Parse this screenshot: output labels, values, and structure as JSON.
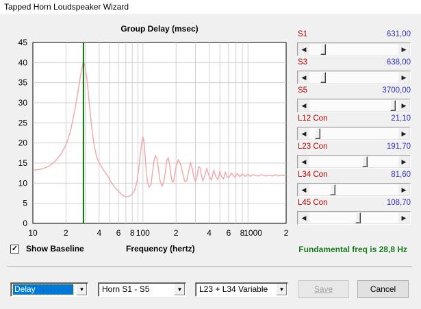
{
  "window": {
    "title": "Tapped Horn Loudspeaker Wizard"
  },
  "chart_data": {
    "type": "line",
    "title": "Group Delay (msec)",
    "xlabel": "Frequency (hertz)",
    "ylabel": "",
    "xscale": "log",
    "xlim": [
      10,
      2000
    ],
    "ylim": [
      0,
      45
    ],
    "y_ticks": [
      0,
      5,
      10,
      15,
      20,
      25,
      30,
      35,
      40,
      45
    ],
    "x_ticks": [
      10,
      20,
      40,
      60,
      80,
      100,
      200,
      400,
      600,
      800,
      1000,
      2000
    ],
    "x_tick_labels": [
      "10",
      "2",
      "4",
      "6",
      "8",
      "100",
      "2",
      "4",
      "6",
      "8",
      "1000",
      "2"
    ],
    "grid": true,
    "marker_freq": 28.8,
    "colors": {
      "curve": "#f0aaaa",
      "marker": "#0a6e0a",
      "grid": "#cfcfcf"
    },
    "series": [
      {
        "x": [
          10,
          12,
          14,
          16,
          18,
          20,
          22,
          24,
          26,
          27,
          28,
          28.8,
          29.5,
          30,
          31,
          32,
          34,
          36,
          38,
          40,
          44,
          48,
          52,
          56,
          60,
          64,
          68,
          72,
          76,
          80,
          84,
          88,
          92,
          95,
          98,
          100,
          102,
          104,
          107,
          110,
          114,
          118,
          122,
          126,
          130,
          134,
          138,
          142,
          146,
          150,
          155,
          160,
          165,
          170,
          175,
          180,
          185,
          190,
          195,
          200,
          210,
          220,
          230,
          240,
          250,
          260,
          270,
          280,
          290,
          300,
          310,
          320,
          330,
          340,
          350,
          360,
          380,
          400,
          420,
          440,
          460,
          480,
          500,
          520,
          540,
          560,
          580,
          600,
          640,
          680,
          720,
          760,
          800,
          850,
          900,
          950,
          1000,
          1100,
          1200,
          1300,
          1400,
          1500,
          1600,
          1700,
          1800,
          1900,
          2000
        ],
        "y": [
          13.2,
          13.5,
          14.2,
          15.5,
          17.2,
          19.5,
          23,
          28,
          33.5,
          36.5,
          38.8,
          40.2,
          39.6,
          38.5,
          36,
          32,
          24.5,
          19.5,
          16.5,
          15,
          13.2,
          11.8,
          10,
          8.8,
          8,
          7.2,
          6.7,
          6.6,
          6.8,
          7.3,
          8.2,
          10.2,
          14,
          17.5,
          20.5,
          21.4,
          20.6,
          18,
          13.5,
          10.2,
          9,
          9.6,
          12.5,
          15.5,
          16.8,
          16.2,
          13.8,
          11,
          9.8,
          9.3,
          10.5,
          12.8,
          15.8,
          16.3,
          14.5,
          11.8,
          10.3,
          10.4,
          12.2,
          14.2,
          15.8,
          14.6,
          12.3,
          10.4,
          10.6,
          12.8,
          15.1,
          13.8,
          11.5,
          10.4,
          11.6,
          14.1,
          13.9,
          11.9,
          10.6,
          11.4,
          13.6,
          11.7,
          10.8,
          13.2,
          11.6,
          10.9,
          12.9,
          11.5,
          11.1,
          12.7,
          11.6,
          11.3,
          12.5,
          11.5,
          12.4,
          11.6,
          12.3,
          11.7,
          12.2,
          11.7,
          12.1,
          11.8,
          12.1,
          11.8,
          12,
          11.8,
          12.1,
          11.8,
          12,
          11.9,
          11.9
        ]
      }
    ]
  },
  "sliders": [
    {
      "label": "S1",
      "value": "631,00",
      "position": 0.12
    },
    {
      "label": "S3",
      "value": "638,00",
      "position": 0.12
    },
    {
      "label": "S5",
      "value": "3700,00",
      "position": 0.96
    },
    {
      "label": "L12  Con",
      "value": "21,10",
      "position": 0.06
    },
    {
      "label": "L23  Con",
      "value": "191,70",
      "position": 0.62
    },
    {
      "label": "L34  Con",
      "value": "81,60",
      "position": 0.24
    },
    {
      "label": "L45  Con",
      "value": "108,70",
      "position": 0.54
    }
  ],
  "controls": {
    "show_baseline_label": "Show Baseline",
    "show_baseline_checked": "✓",
    "frequency_label": "Frequency (hertz)",
    "fundamental_text": "Fundamental freq is 28,8 Hz"
  },
  "bottom": {
    "mode_select": "Delay",
    "horn_select": "Horn S1 - S5",
    "variable_select": "L23 + L34 Variable",
    "save_label": "Save",
    "cancel_label": "Cancel"
  }
}
